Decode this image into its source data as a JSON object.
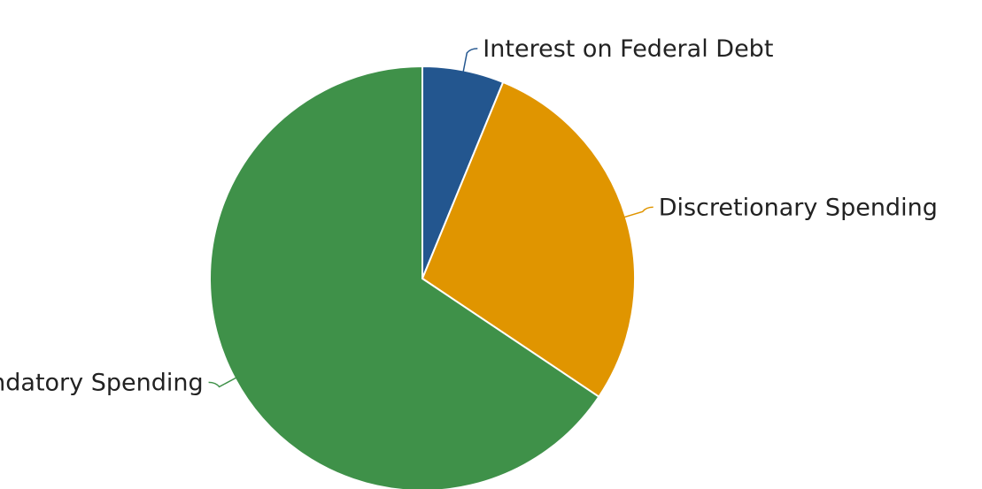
{
  "chart_data": {
    "type": "pie",
    "slices": [
      {
        "label": "Interest on Federal Debt",
        "value": 6.2,
        "color": "#23568f"
      },
      {
        "label": "Discretionary Spending",
        "value": 28.2,
        "color": "#e09500"
      },
      {
        "label": "Mandatory Spending",
        "value": 65.6,
        "color": "#3f9149"
      }
    ],
    "legend": "none"
  }
}
